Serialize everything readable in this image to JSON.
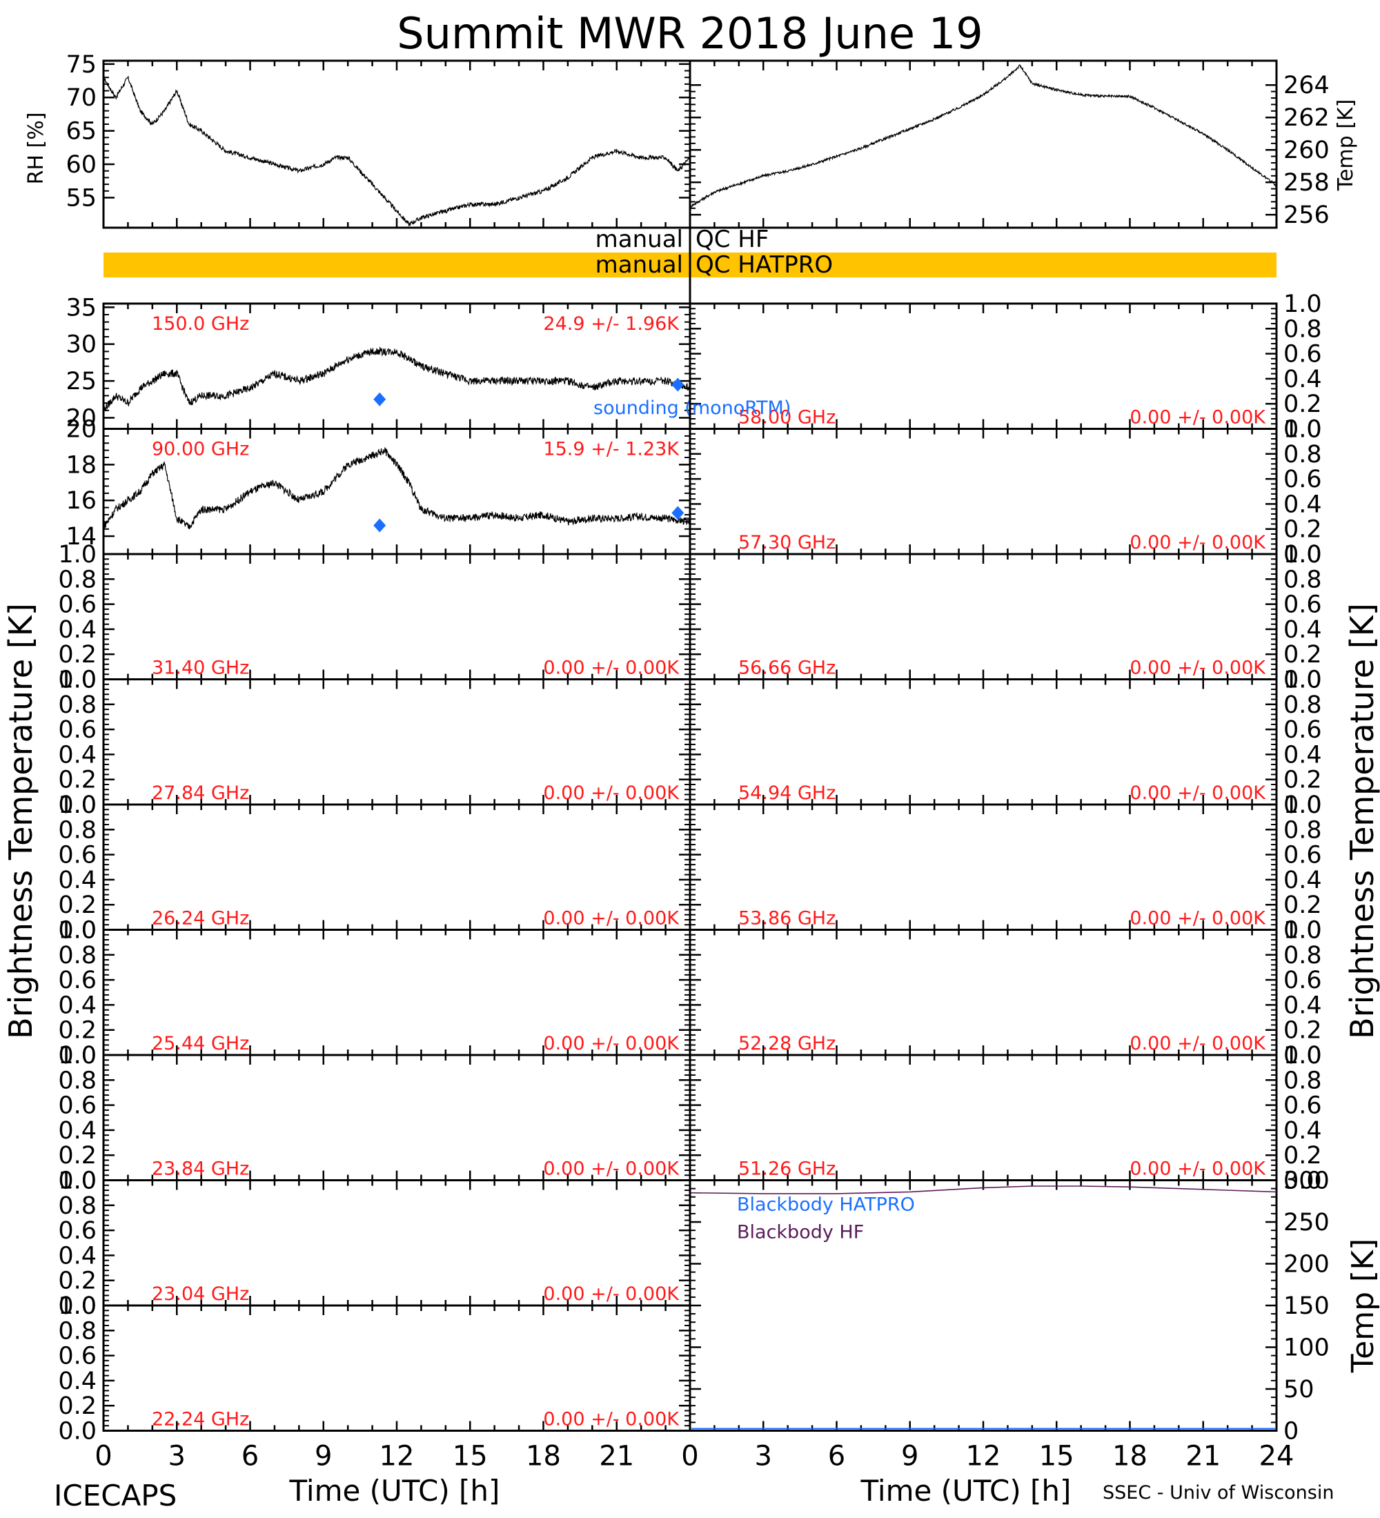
{
  "title": "Summit MWR 2018 June 19",
  "footer": {
    "left": "ICECAPS",
    "right": "SSEC - Univ of Wisconsin"
  },
  "qc_bars": [
    {
      "left": "manual",
      "right": "QC HF",
      "color": ""
    },
    {
      "left": "manual",
      "right": "QC HATPRO",
      "color": "#ffc300"
    }
  ],
  "colors": {
    "trace": "#000000",
    "label": "#ff1a1a",
    "sounding": "#1a6fff",
    "bb_hatpro": "#1a6fff",
    "bb_hf": "#5a1a5a",
    "qc_hatpro": "#ffc300"
  },
  "chart_data": [
    {
      "type": "scatter",
      "name": "rh",
      "ylabel": "RH [%]",
      "ylim": [
        50.5,
        75.5
      ],
      "yticks": [
        55,
        60,
        65,
        70,
        75
      ],
      "xlim": [
        0,
        24
      ],
      "series": [
        {
          "name": "",
          "x": [
            0,
            0.5,
            1,
            1.5,
            2,
            2.5,
            3,
            3.5,
            4,
            5,
            6,
            7,
            8,
            9,
            9.5,
            10,
            10.5,
            11,
            11.5,
            12,
            12.5,
            13,
            14,
            15,
            16,
            17,
            18,
            19,
            20,
            21,
            22,
            23,
            23.5,
            24
          ],
          "y": [
            73,
            70,
            73,
            68,
            66,
            68,
            71,
            66,
            65,
            62,
            61,
            60,
            59,
            60,
            61,
            61,
            59,
            57,
            55,
            53,
            51,
            52,
            53,
            54,
            54,
            55,
            56,
            58,
            61,
            62,
            61,
            61,
            59,
            61
          ]
        }
      ]
    },
    {
      "type": "scatter",
      "name": "temp",
      "ylabel": "Temp [K]",
      "ylim": [
        255.2,
        265.5
      ],
      "yticks": [
        256,
        258,
        260,
        262,
        264
      ],
      "xlim": [
        0,
        24
      ],
      "series": [
        {
          "name": "",
          "x": [
            0,
            1,
            2,
            3,
            4,
            5,
            6,
            7,
            8,
            9,
            10,
            11,
            12,
            13,
            13.5,
            14,
            15,
            16,
            17,
            18,
            19,
            20,
            21,
            22,
            23,
            24
          ],
          "y": [
            256.5,
            257.4,
            257.9,
            258.4,
            258.7,
            259.1,
            259.6,
            260.1,
            260.7,
            261.3,
            261.9,
            262.6,
            263.4,
            264.5,
            265.2,
            264.1,
            263.7,
            263.4,
            263.3,
            263.3,
            262.6,
            261.8,
            261.0,
            260.0,
            258.9,
            257.8
          ]
        }
      ]
    },
    {
      "type": "line",
      "name": "tb_150",
      "freq_label": "150.0 GHz",
      "stats_label": "24.9 +/-  1.96K",
      "ylim": [
        18.5,
        35.5
      ],
      "yticks": [
        20,
        25,
        30,
        35
      ],
      "xlim": [
        0,
        24
      ],
      "series": [
        {
          "name": "",
          "x": [
            0,
            0.5,
            1,
            1.5,
            2,
            2.5,
            3,
            3.5,
            4,
            5,
            6,
            7,
            8,
            9,
            10,
            11,
            12,
            13,
            14,
            15,
            16,
            17,
            18,
            19,
            20,
            21,
            22,
            23,
            24
          ],
          "y": [
            21,
            23,
            22,
            24,
            25,
            26,
            26,
            22,
            23,
            23,
            24,
            26,
            25,
            26,
            28,
            29,
            29,
            27,
            26,
            25,
            25,
            25,
            25,
            25,
            24,
            25,
            25,
            25,
            24
          ]
        }
      ],
      "sounding": {
        "name": "sounding (monoRTM)",
        "x": [
          11.3,
          23.5
        ],
        "y": [
          22.5,
          24.5
        ]
      }
    },
    {
      "type": "line",
      "name": "tb_90",
      "freq_label": "90.00 GHz",
      "stats_label": "15.9 +/-  1.23K",
      "ylim": [
        13,
        20
      ],
      "yticks": [
        14,
        16,
        18,
        20
      ],
      "xlim": [
        0,
        24
      ],
      "series": [
        {
          "name": "",
          "x": [
            0,
            0.5,
            1,
            1.5,
            2,
            2.5,
            3,
            3.5,
            4,
            5,
            6,
            7,
            8,
            9,
            10,
            11,
            11.5,
            12,
            12.5,
            13,
            14,
            15,
            16,
            17,
            18,
            19,
            20,
            21,
            22,
            23,
            24
          ],
          "y": [
            14.5,
            15.5,
            16,
            16.5,
            17.5,
            18,
            15,
            14.5,
            15.5,
            15.5,
            16.5,
            17,
            16,
            16.5,
            18,
            18.5,
            18.8,
            18,
            17,
            15.5,
            15,
            15,
            15.2,
            15,
            15.2,
            14.8,
            15,
            15,
            15.1,
            15,
            14.8
          ]
        }
      ],
      "sounding": {
        "name": "sounding (monoRTM)",
        "x": [
          11.3,
          23.5
        ],
        "y": [
          14.6,
          15.3
        ]
      }
    },
    {
      "type": "line",
      "name": "tb_31_40",
      "freq_label": "31.40 GHz",
      "stats_label": "0.00 +/-  0.00K",
      "ylim": [
        0,
        1
      ],
      "yticks": [
        0.0,
        0.2,
        0.4,
        0.6,
        0.8,
        1.0
      ],
      "series": []
    },
    {
      "type": "line",
      "name": "tb_27_84",
      "freq_label": "27.84 GHz",
      "stats_label": "0.00 +/-  0.00K",
      "ylim": [
        0,
        1
      ],
      "yticks": [
        0.0,
        0.2,
        0.4,
        0.6,
        0.8,
        1.0
      ],
      "series": []
    },
    {
      "type": "line",
      "name": "tb_26_24",
      "freq_label": "26.24 GHz",
      "stats_label": "0.00 +/-  0.00K",
      "ylim": [
        0,
        1
      ],
      "yticks": [
        0.0,
        0.2,
        0.4,
        0.6,
        0.8,
        1.0
      ],
      "series": []
    },
    {
      "type": "line",
      "name": "tb_25_44",
      "freq_label": "25.44 GHz",
      "stats_label": "0.00 +/-  0.00K",
      "ylim": [
        0,
        1
      ],
      "yticks": [
        0.0,
        0.2,
        0.4,
        0.6,
        0.8,
        1.0
      ],
      "series": []
    },
    {
      "type": "line",
      "name": "tb_23_84",
      "freq_label": "23.84 GHz",
      "stats_label": "0.00 +/-  0.00K",
      "ylim": [
        0,
        1
      ],
      "yticks": [
        0.0,
        0.2,
        0.4,
        0.6,
        0.8,
        1.0
      ],
      "series": []
    },
    {
      "type": "line",
      "name": "tb_23_04",
      "freq_label": "23.04 GHz",
      "stats_label": "0.00 +/-  0.00K",
      "ylim": [
        0,
        1
      ],
      "yticks": [
        0.0,
        0.2,
        0.4,
        0.6,
        0.8,
        1.0
      ],
      "series": []
    },
    {
      "type": "line",
      "name": "tb_22_24",
      "freq_label": "22.24 GHz",
      "stats_label": "0.00 +/-  0.00K",
      "ylim": [
        0,
        1
      ],
      "yticks": [
        0.0,
        0.2,
        0.4,
        0.6,
        0.8,
        1.0
      ],
      "series": []
    },
    {
      "type": "line",
      "name": "tb_58_00",
      "freq_label": "58.00 GHz",
      "stats_label": "0.00 +/-  0.00K",
      "ylim": [
        0,
        1
      ],
      "yticks": [
        0.0,
        0.2,
        0.4,
        0.6,
        0.8,
        1.0
      ],
      "series": []
    },
    {
      "type": "line",
      "name": "tb_57_30",
      "freq_label": "57.30 GHz",
      "stats_label": "0.00 +/-  0.00K",
      "ylim": [
        0,
        1
      ],
      "yticks": [
        0.0,
        0.2,
        0.4,
        0.6,
        0.8,
        1.0
      ],
      "series": []
    },
    {
      "type": "line",
      "name": "tb_56_66",
      "freq_label": "56.66 GHz",
      "stats_label": "0.00 +/-  0.00K",
      "ylim": [
        0,
        1
      ],
      "yticks": [
        0.0,
        0.2,
        0.4,
        0.6,
        0.8,
        1.0
      ],
      "series": []
    },
    {
      "type": "line",
      "name": "tb_54_94",
      "freq_label": "54.94 GHz",
      "stats_label": "0.00 +/-  0.00K",
      "ylim": [
        0,
        1
      ],
      "yticks": [
        0.0,
        0.2,
        0.4,
        0.6,
        0.8,
        1.0
      ],
      "series": []
    },
    {
      "type": "line",
      "name": "tb_53_86",
      "freq_label": "53.86 GHz",
      "stats_label": "0.00 +/-  0.00K",
      "ylim": [
        0,
        1
      ],
      "yticks": [
        0.0,
        0.2,
        0.4,
        0.6,
        0.8,
        1.0
      ],
      "series": []
    },
    {
      "type": "line",
      "name": "tb_52_28",
      "freq_label": "52.28 GHz",
      "stats_label": "0.00 +/-  0.00K",
      "ylim": [
        0,
        1
      ],
      "yticks": [
        0.0,
        0.2,
        0.4,
        0.6,
        0.8,
        1.0
      ],
      "series": []
    },
    {
      "type": "line",
      "name": "tb_51_26",
      "freq_label": "51.26 GHz",
      "stats_label": "0.00 +/-  0.00K",
      "ylim": [
        0,
        1
      ],
      "yticks": [
        0.0,
        0.2,
        0.4,
        0.6,
        0.8,
        1.0
      ],
      "series": []
    },
    {
      "type": "line",
      "name": "blackbody",
      "ylabel": "Temp [K]",
      "ylim": [
        0,
        300
      ],
      "yticks": [
        0,
        50,
        100,
        150,
        200,
        250,
        300
      ],
      "xlim": [
        0,
        24
      ],
      "xlabel": "Time (UTC) [h]",
      "xticks": [
        0,
        3,
        6,
        9,
        12,
        15,
        18,
        21,
        24
      ],
      "series": [
        {
          "name": "Blackbody HATPRO",
          "x": [],
          "y": []
        },
        {
          "name": "Blackbody HF",
          "x": [
            0,
            3,
            6,
            9,
            12,
            14,
            15,
            16,
            18,
            20,
            22,
            24
          ],
          "y": [
            285,
            284,
            284,
            286,
            291,
            293,
            293,
            293,
            292,
            290,
            288,
            286
          ]
        }
      ]
    }
  ],
  "axes": {
    "left_xticks": [
      0,
      3,
      6,
      9,
      12,
      15,
      18,
      21
    ],
    "right_xticks": [
      0,
      3,
      6,
      9,
      12,
      15,
      18,
      21,
      24
    ],
    "xlabel": "Time (UTC) [h]",
    "ylabel": "Brightness Temperature [K]"
  }
}
